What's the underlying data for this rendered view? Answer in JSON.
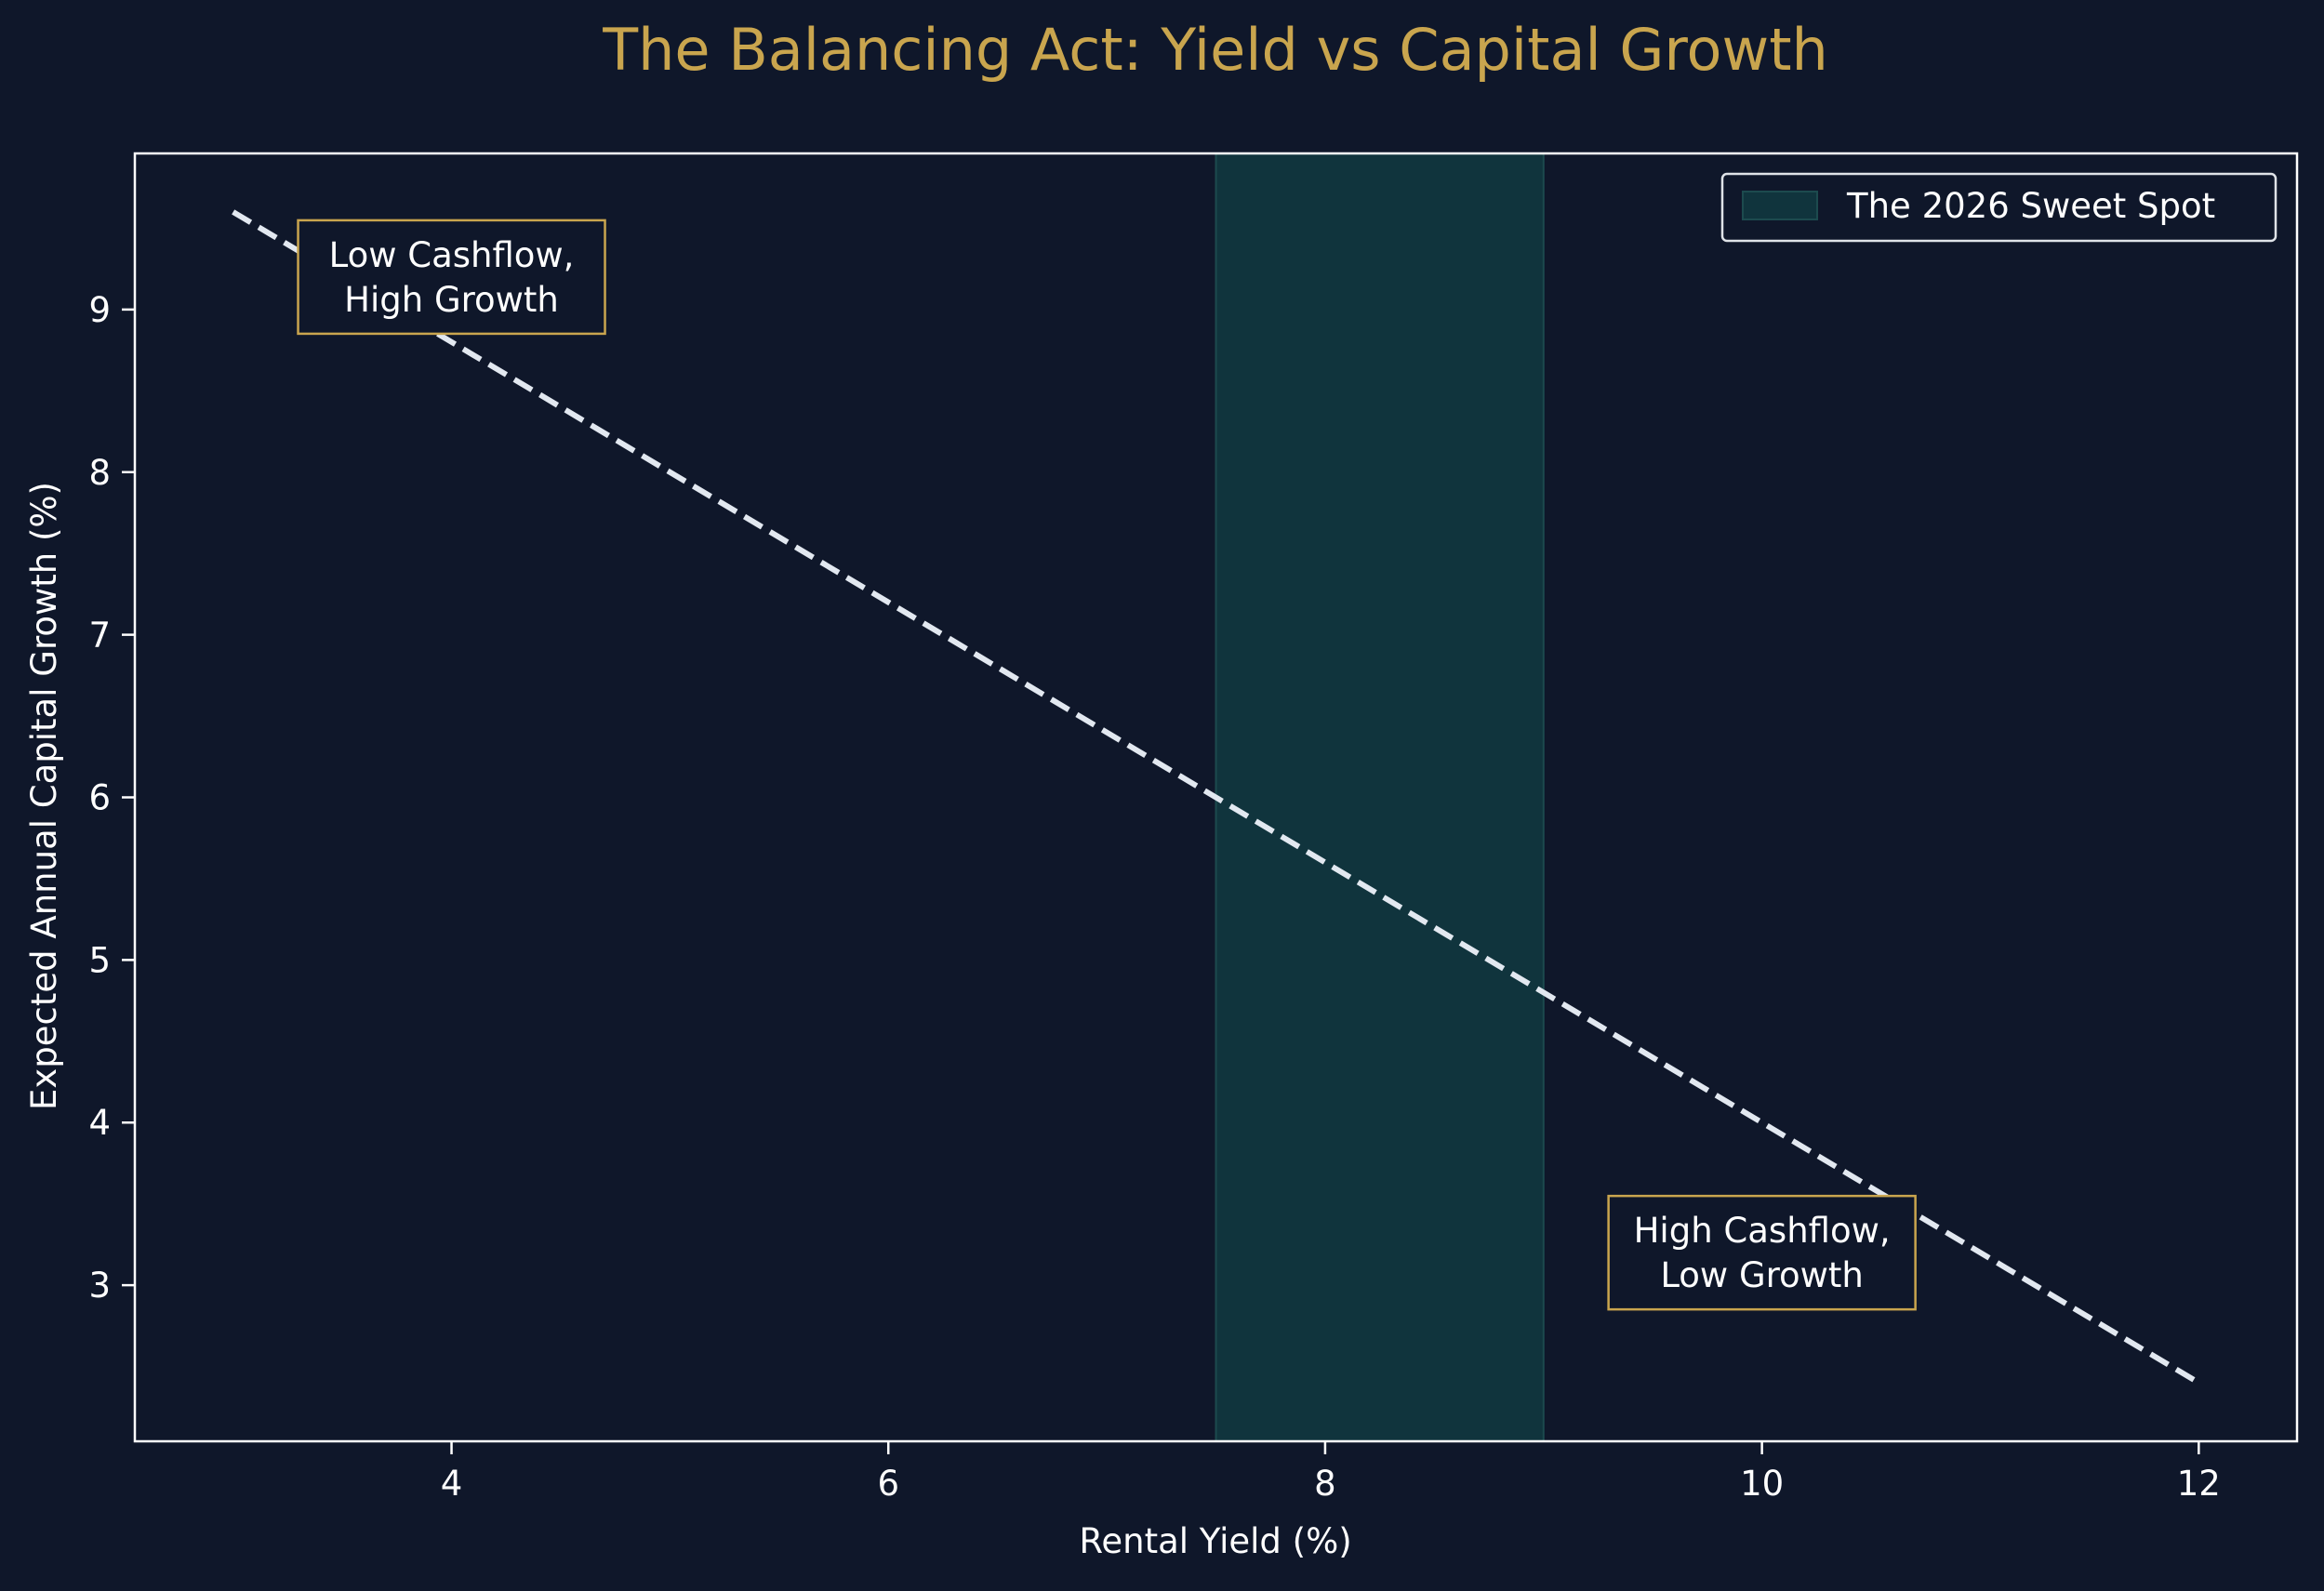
{
  "chart_data": {
    "type": "line",
    "title": "The Balancing Act: Yield vs Capital Growth",
    "xlabel": "Rental Yield (%)",
    "ylabel": "Expected Annual Capital Growth (%)",
    "xlim": [
      2.55,
      12.45
    ],
    "ylim": [
      2.04,
      9.96
    ],
    "x_ticks": [
      4,
      6,
      8,
      10,
      12
    ],
    "y_ticks": [
      3,
      4,
      5,
      6,
      7,
      8,
      9
    ],
    "grid": false,
    "legend_position": "top-right",
    "series": [
      {
        "x": [
          3,
          12
        ],
        "y": [
          9.6,
          2.4
        ],
        "style": "dashed",
        "color": "#e2e8f0"
      }
    ],
    "shaded_regions": [
      {
        "name": "The 2026 Sweet Spot",
        "x_start": 7.5,
        "x_end": 9,
        "fill": "#10343d",
        "edge": "#1c4a4e"
      }
    ],
    "annotations": [
      {
        "lines": [
          "Low Cashflow,",
          "High Growth"
        ],
        "x": 4,
        "y": 9.2
      },
      {
        "lines": [
          "High Cashflow,",
          "Low Growth"
        ],
        "x": 10,
        "y": 3.2
      }
    ],
    "colors": {
      "background": "#0f172a",
      "title": "#c9a54e",
      "text": "#ffffff",
      "annotation_border": "#c9a54e",
      "axis": "#ffffff"
    }
  }
}
